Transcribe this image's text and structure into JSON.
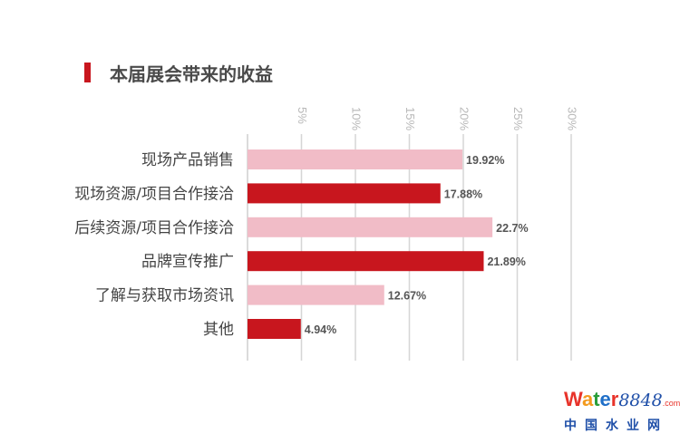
{
  "chart_data": {
    "type": "bar",
    "orientation": "horizontal",
    "title": "本届展会带来的收益",
    "categories": [
      "现场产品销售",
      "现场资源/项目合作接洽",
      "后续资源/项目合作接洽",
      "品牌宣传推广",
      "了解与获取市场资讯",
      "其他"
    ],
    "values": [
      19.92,
      17.88,
      22.7,
      21.89,
      12.67,
      4.94
    ],
    "data_labels": [
      "19.92%",
      "17.88%",
      "22.7%",
      "21.89%",
      "12.67%",
      "4.94%"
    ],
    "bar_colors": [
      "#f1bcc7",
      "#c8161e",
      "#f1bcc7",
      "#c8161e",
      "#f1bcc7",
      "#c8161e"
    ],
    "xlim": [
      0,
      30
    ],
    "x_ticks": [
      5,
      10,
      15,
      20,
      25,
      30
    ],
    "x_tick_labels": [
      "5%",
      "10%",
      "15%",
      "20%",
      "25%",
      "30%"
    ],
    "x_axis_position": "top",
    "grid": true
  },
  "accent_color": "#c8161e",
  "watermark": {
    "brand": "Water8848",
    "domain": ".com",
    "subtitle": "中国水业网"
  }
}
